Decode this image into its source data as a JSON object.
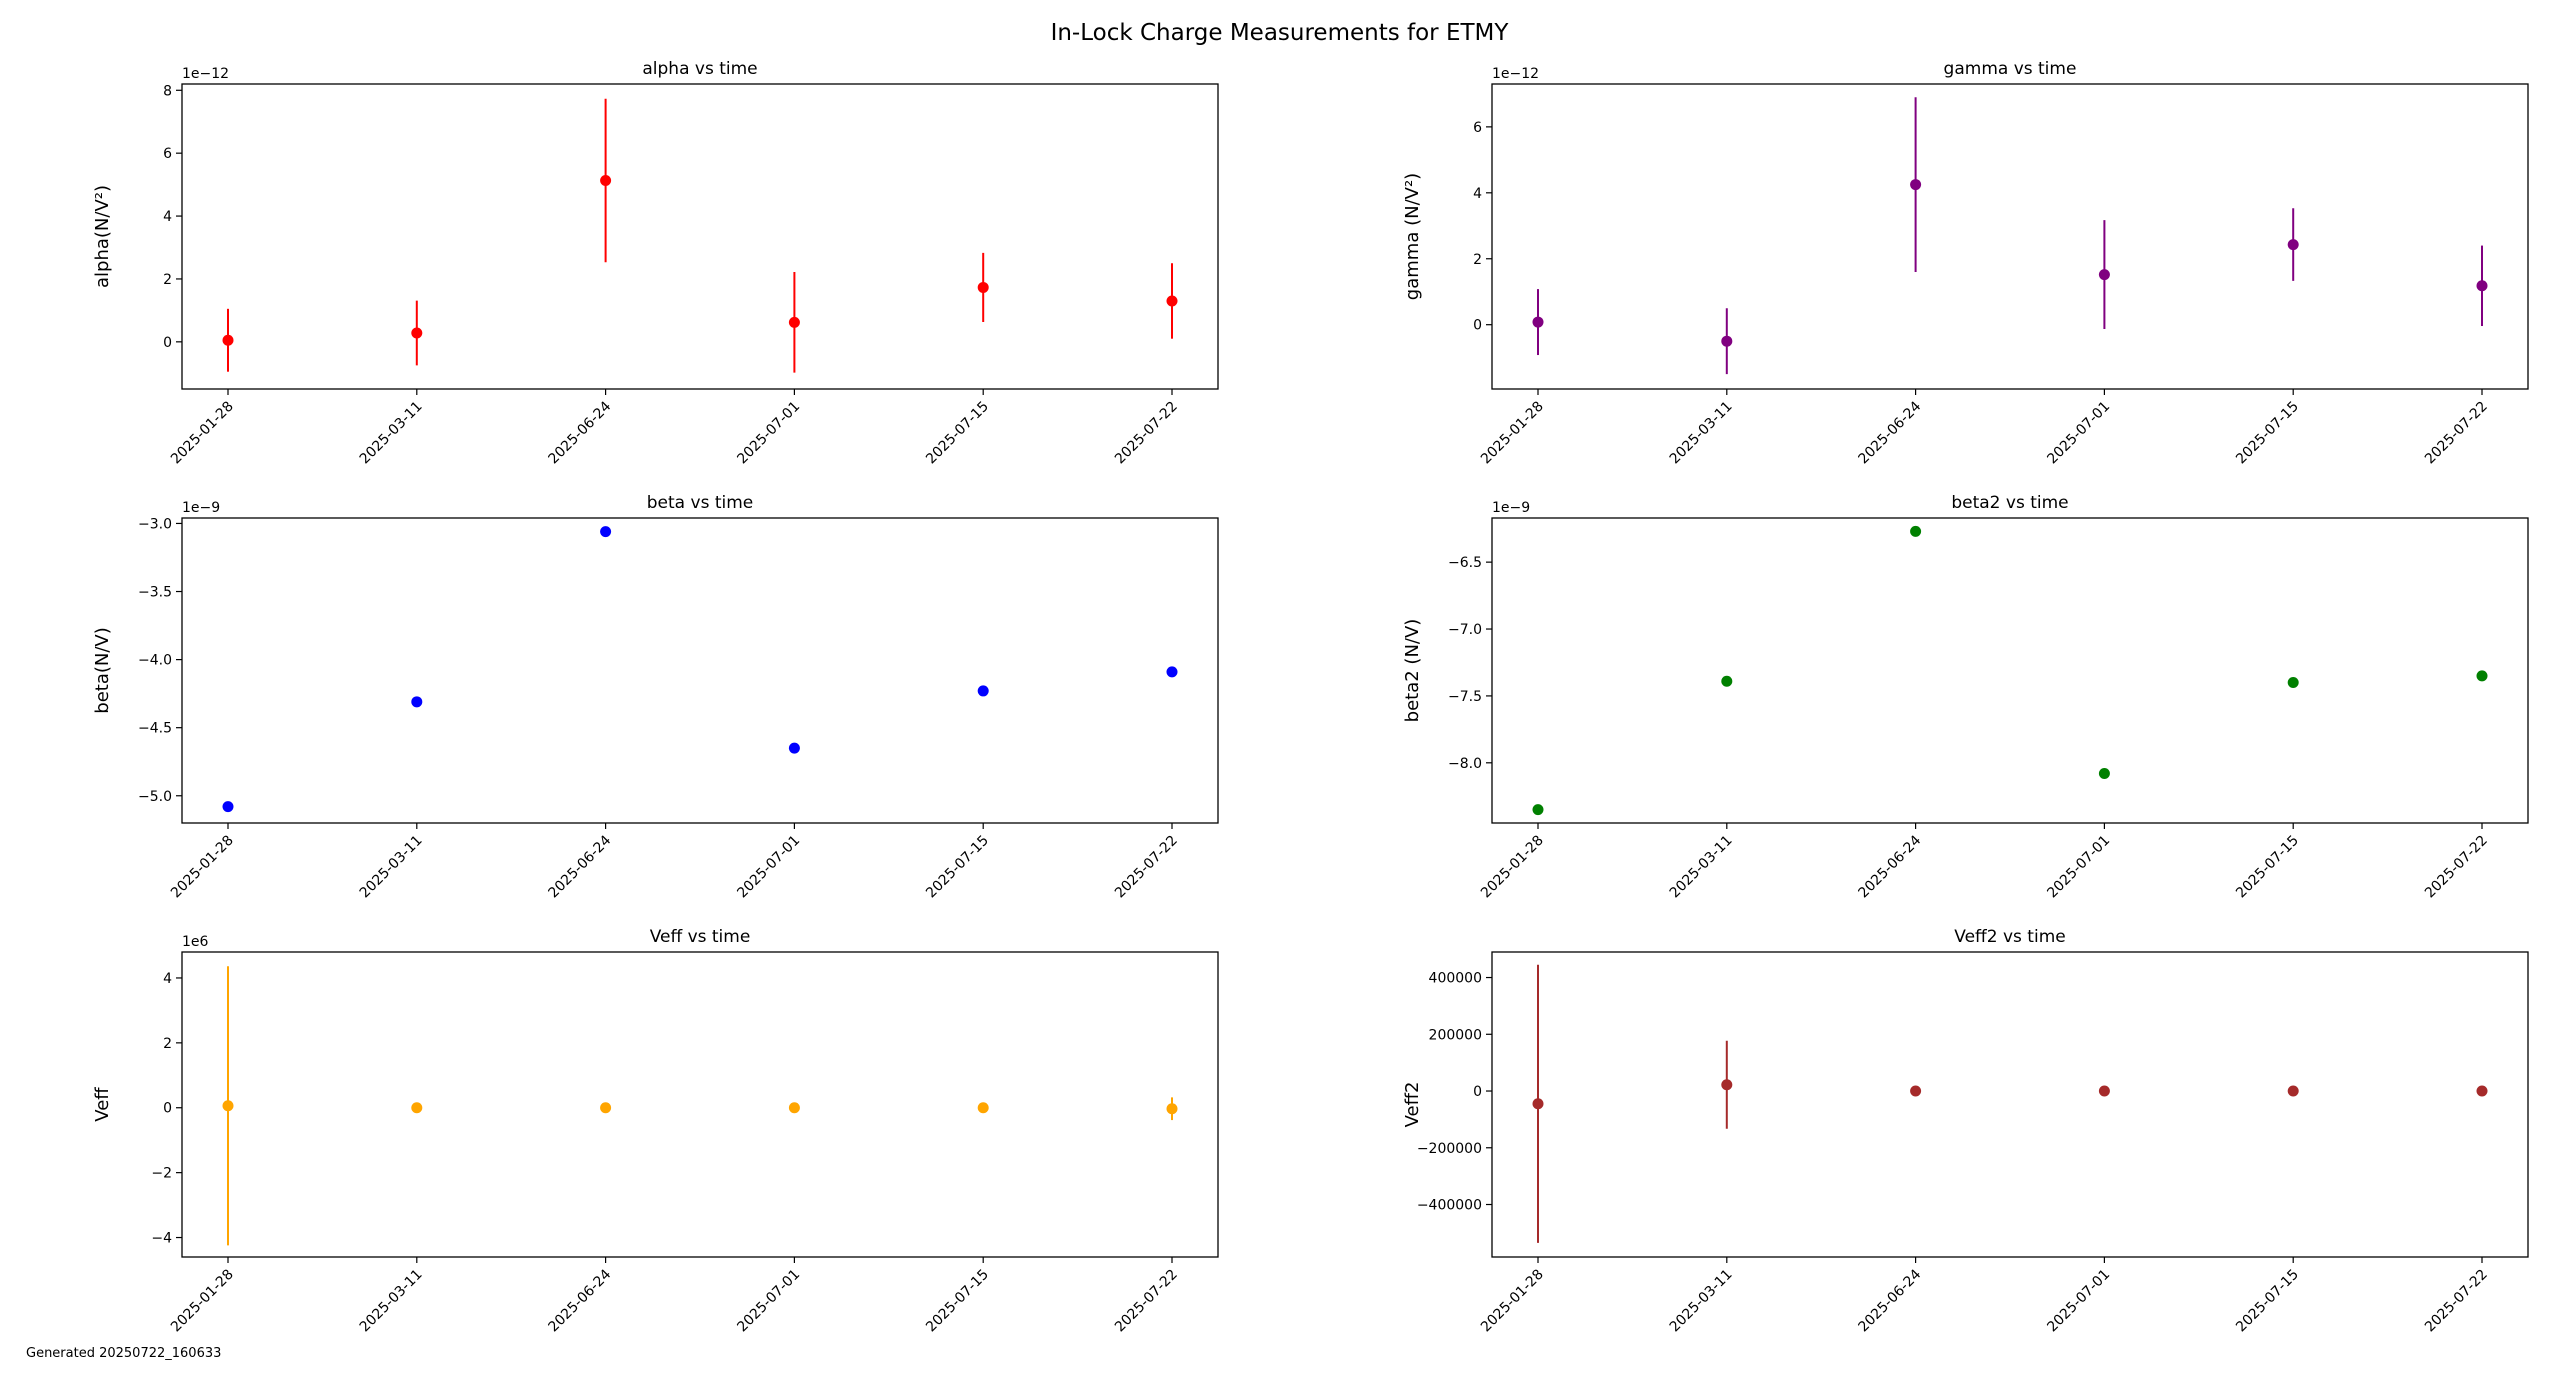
{
  "figure": {
    "title": "In-Lock Charge Measurements for ETMY",
    "footer": "Generated 20250722_160633"
  },
  "chart_data": [
    {
      "id": "alpha",
      "type": "scatter",
      "title": "alpha vs time",
      "ylabel": "alpha(N/V²)",
      "x": [
        "2025-01-28",
        "2025-03-11",
        "2025-06-24",
        "2025-07-01",
        "2025-07-15",
        "2025-07-22"
      ],
      "y": [
        5e-14,
        2.8e-13,
        5.13e-12,
        6.2e-13,
        1.73e-12,
        1.3e-12
      ],
      "yerr": [
        1e-12,
        1.03e-12,
        2.6e-12,
        1.6e-12,
        1.1e-12,
        1.2e-12
      ],
      "color": "#ff0000",
      "ylim": [
        -1.5e-12,
        8.2e-12
      ],
      "yticks": [
        0,
        2e-12,
        4e-12,
        6e-12,
        8e-12
      ],
      "ytick_labels": [
        "0",
        "2",
        "4",
        "6",
        "8"
      ],
      "offset_text": "1e−12"
    },
    {
      "id": "gamma",
      "type": "scatter",
      "title": "gamma vs time",
      "ylabel": "gamma (N/V²)",
      "x": [
        "2025-01-28",
        "2025-03-11",
        "2025-06-24",
        "2025-07-01",
        "2025-07-15",
        "2025-07-22"
      ],
      "y": [
        8e-14,
        -5e-13,
        4.25e-12,
        1.52e-12,
        2.43e-12,
        1.18e-12
      ],
      "yerr": [
        1e-12,
        1e-12,
        2.65e-12,
        1.65e-12,
        1.1e-12,
        1.22e-12
      ],
      "color": "#800080",
      "ylim": [
        -1.95e-12,
        7.3e-12
      ],
      "yticks": [
        0,
        2e-12,
        4e-12,
        6e-12
      ],
      "ytick_labels": [
        "0",
        "2",
        "4",
        "6"
      ],
      "offset_text": "1e−12"
    },
    {
      "id": "beta",
      "type": "scatter",
      "title": "beta vs time",
      "ylabel": "beta(N/V)",
      "x": [
        "2025-01-28",
        "2025-03-11",
        "2025-06-24",
        "2025-07-01",
        "2025-07-15",
        "2025-07-22"
      ],
      "y": [
        -5.08e-09,
        -4.31e-09,
        -3.06e-09,
        -4.65e-09,
        -4.23e-09,
        -4.09e-09
      ],
      "yerr": [
        0,
        0,
        0,
        0,
        0,
        0
      ],
      "color": "#0000ff",
      "ylim": [
        -5.2e-09,
        -2.96e-09
      ],
      "yticks": [
        -5e-09,
        -4.5e-09,
        -4e-09,
        -3.5e-09,
        -3e-09
      ],
      "ytick_labels": [
        "−5.0",
        "−4.5",
        "−4.0",
        "−3.5",
        "−3.0"
      ],
      "offset_text": "1e−9"
    },
    {
      "id": "beta2",
      "type": "scatter",
      "title": "beta2 vs time",
      "ylabel": "beta2 (N/V)",
      "x": [
        "2025-01-28",
        "2025-03-11",
        "2025-06-24",
        "2025-07-01",
        "2025-07-15",
        "2025-07-22"
      ],
      "y": [
        -8.35e-09,
        -7.39e-09,
        -6.27e-09,
        -8.08e-09,
        -7.4e-09,
        -7.35e-09
      ],
      "yerr": [
        0,
        0,
        0,
        0,
        0,
        0
      ],
      "color": "#008000",
      "ylim": [
        -8.45e-09,
        -6.17e-09
      ],
      "yticks": [
        -8e-09,
        -7.5e-09,
        -7e-09,
        -6.5e-09
      ],
      "ytick_labels": [
        "−8.0",
        "−7.5",
        "−7.0",
        "−6.5"
      ],
      "offset_text": "1e−9"
    },
    {
      "id": "veff",
      "type": "scatter",
      "title": "Veff vs time",
      "ylabel": "Veff",
      "x": [
        "2025-01-28",
        "2025-03-11",
        "2025-06-24",
        "2025-07-01",
        "2025-07-15",
        "2025-07-22"
      ],
      "y": [
        60000,
        0,
        0,
        0,
        0,
        -30000
      ],
      "yerr": [
        4300000,
        0,
        0,
        0,
        0,
        350000
      ],
      "color": "#ffa500",
      "ylim": [
        -4600000.0,
        4800000.0
      ],
      "yticks": [
        -4000000.0,
        -2000000.0,
        0,
        2000000.0,
        4000000.0
      ],
      "ytick_labels": [
        "−4",
        "−2",
        "0",
        "2",
        "4"
      ],
      "offset_text": "1e6"
    },
    {
      "id": "veff2",
      "type": "scatter",
      "title": "Veff2 vs time",
      "ylabel": "Veff2",
      "x": [
        "2025-01-28",
        "2025-03-11",
        "2025-06-24",
        "2025-07-01",
        "2025-07-15",
        "2025-07-22"
      ],
      "y": [
        -45000,
        22000,
        0,
        0,
        0,
        0
      ],
      "yerr": [
        490000,
        155000,
        0,
        0,
        0,
        0
      ],
      "color": "#a52a2a",
      "ylim": [
        -585000,
        490000
      ],
      "yticks": [
        -400000,
        -200000,
        0,
        200000,
        400000
      ],
      "ytick_labels": [
        "−400000",
        "−200000",
        "0",
        "200000",
        "400000"
      ],
      "offset_text": ""
    }
  ]
}
